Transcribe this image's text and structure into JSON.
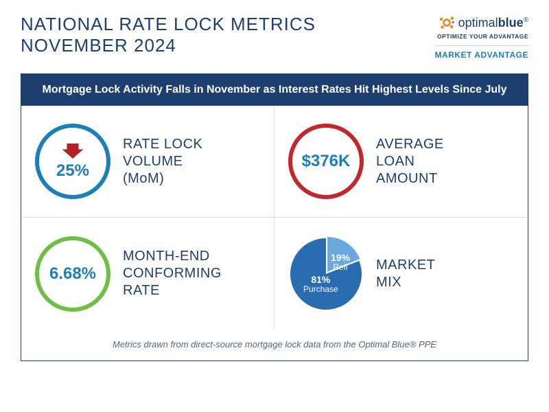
{
  "header": {
    "title_line1": "NATIONAL RATE LOCK METRICS",
    "title_line2": "NOVEMBER 2024"
  },
  "brand": {
    "name_light": "optimal",
    "name_bold": "blue",
    "tagline": "OPTIMIZE YOUR ADVANTAGE",
    "subtitle": "MARKET ADVANTAGE",
    "icon_colors": {
      "primary": "#f58220",
      "accent": "#3b7fc4"
    }
  },
  "banner": "Mortgage Lock Activity Falls in November as Interest Rates Hit Highest Levels Since July",
  "metrics": {
    "rate_lock_volume": {
      "value": "25%",
      "label": "RATE LOCK\nVOLUME\n(MoM)",
      "direction": "down",
      "ring_color": "#1c7fb8",
      "value_color": "#1c7fb8",
      "arrow_color": "#b22222"
    },
    "avg_loan": {
      "value": "$376K",
      "label": "AVERAGE\nLOAN\nAMOUNT",
      "ring_color": "#c1272d",
      "value_color": "#1c7fb8"
    },
    "conforming_rate": {
      "value": "6.68%",
      "label": "MONTH-END\nCONFORMING\nRATE",
      "ring_color": "#6fbf44",
      "value_color": "#1c7fb8"
    },
    "market_mix": {
      "type": "pie",
      "label": "MARKET\nMIX",
      "slices": [
        {
          "name": "Purchase",
          "pct": 81,
          "color": "#2a6cb0"
        },
        {
          "name": "Refi",
          "pct": 19,
          "color": "#6aa7dd"
        }
      ],
      "separator_color": "#ffffff"
    }
  },
  "footnote": "Metrics drawn from direct-source mortgage lock data from the Optimal Blue® PPE",
  "colors": {
    "navy": "#1c3f70",
    "divider": "#d9dee5",
    "background": "#ffffff",
    "footnote_text": "#55647a"
  }
}
